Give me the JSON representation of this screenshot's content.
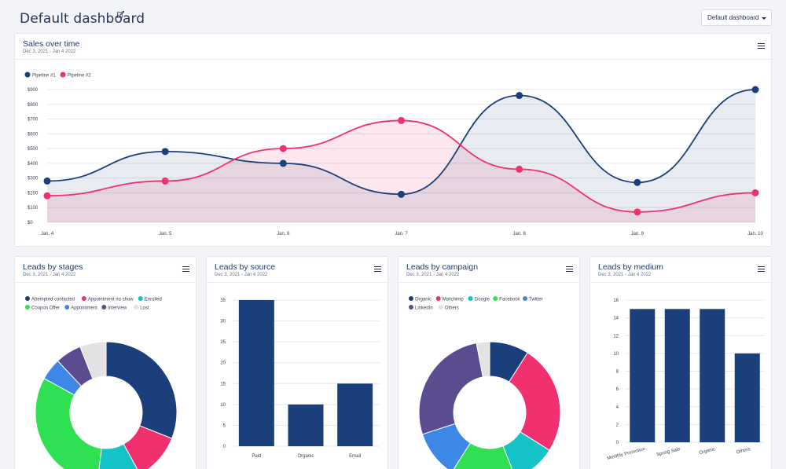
{
  "header": {
    "title": "Default dashboard",
    "dashboard_select": "Default dashboard"
  },
  "colors": {
    "navy": "#1b3f7a",
    "pink": "#f0316e",
    "teal": "#13c3c6",
    "green": "#2fe053",
    "blue": "#3d87e6",
    "purple": "#5b4c90",
    "lightgray": "#e2e2e2"
  },
  "sales": {
    "title": "Sales over time",
    "subtitle": "Dec 3, 2021 - Jan 4 2022",
    "menu_icon": "hamburger-menu-icon",
    "chart_data": {
      "type": "area",
      "categories": [
        "Jan. 4",
        "Jan. 5",
        "Jan. 6",
        "Jan. 7",
        "Jan. 8",
        "Jan. 9",
        "Jan. 10"
      ],
      "y_ticks": [
        "$0",
        "$100",
        "$200",
        "$300",
        "$400",
        "$500",
        "$600",
        "$700",
        "$800",
        "$900"
      ],
      "ylim": [
        0,
        900
      ],
      "grid": true,
      "legend": "top-left",
      "series": [
        {
          "name": "Pipeline #1",
          "color": "#1b3f7a",
          "values": [
            280,
            480,
            400,
            190,
            860,
            270,
            900
          ]
        },
        {
          "name": "Pipeline #2",
          "color": "#f0316e",
          "values": [
            180,
            280,
            500,
            690,
            360,
            70,
            200
          ]
        }
      ]
    }
  },
  "stages": {
    "title": "Leads by stages",
    "subtitle": "Dec 3, 2021 - Jan 4 2022",
    "chart_data": {
      "type": "pie",
      "legend": "top",
      "labels": [
        "Attempted contacted",
        "Appointment no show",
        "Enrolled",
        "Coupon Offer",
        "Appointment",
        "Interview",
        "Lost"
      ],
      "colors": [
        "#1b3f7a",
        "#f0316e",
        "#13c3c6",
        "#2fe053",
        "#3d87e6",
        "#5b4c90",
        "#e2e2e2"
      ],
      "values": [
        31,
        11,
        10,
        31,
        5,
        6,
        6
      ]
    }
  },
  "source": {
    "title": "Leads by source",
    "subtitle": "Dec 3, 2021 - Jan 4 2022",
    "chart_data": {
      "type": "bar",
      "categories": [
        "Paid",
        "Organic",
        "Email"
      ],
      "values": [
        35,
        10,
        15
      ],
      "y_ticks": [
        "0",
        "5",
        "10",
        "15",
        "20",
        "25",
        "30",
        "35"
      ],
      "ylim": [
        0,
        35
      ],
      "color": "#1b3f7a"
    }
  },
  "campaign": {
    "title": "Leads by campaign",
    "subtitle": "Dec 3, 2021 - Jan 4 2022",
    "chart_data": {
      "type": "pie",
      "legend": "top",
      "labels": [
        "Organic",
        "Mailchimp",
        "Google",
        "Facebook",
        "Twitter",
        "LinkedIn",
        "Others"
      ],
      "colors": [
        "#1b3f7a",
        "#f0316e",
        "#13c3c6",
        "#2fe053",
        "#3d87e6",
        "#5b4c90",
        "#e2e2e2"
      ],
      "values": [
        9,
        25,
        10,
        15,
        11,
        27,
        3
      ]
    }
  },
  "medium": {
    "title": "Leads by medium",
    "subtitle": "Dec 3, 2021 - Jan 4 2022",
    "chart_data": {
      "type": "bar",
      "categories": [
        "Monthly Promotion",
        "Spring Sale",
        "Organic",
        "Others"
      ],
      "values": [
        15,
        15,
        15,
        10
      ],
      "y_ticks": [
        "0",
        "2",
        "4",
        "6",
        "8",
        "10",
        "12",
        "14",
        "16"
      ],
      "ylim": [
        0,
        16
      ],
      "color": "#1b3f7a"
    }
  }
}
